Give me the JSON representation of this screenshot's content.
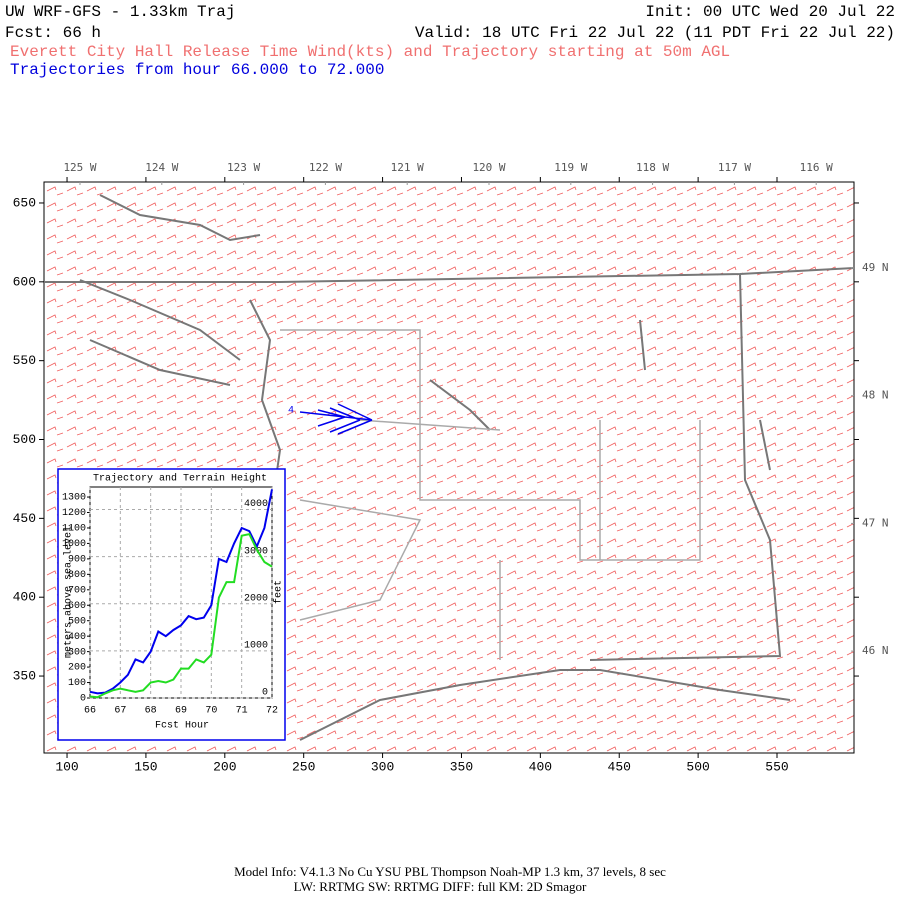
{
  "header": {
    "model": "UW WRF-GFS - 1.33km Traj",
    "init": "Init: 00 UTC Wed 20 Jul 22",
    "fcst": "Fcst:  66 h",
    "valid": "Valid: 18 UTC Fri 22 Jul 22 (11 PDT Fri 22 Jul 22)",
    "subtitle": "Everett City Hall Release Time Wind(kts) and Trajectory starting at 50m AGL",
    "trajectory_range": "Trajectories from hour  66.000 to  72.000"
  },
  "map": {
    "xlim": [
      85.4,
      598.8
    ],
    "ylim": [
      301.2,
      663.3
    ],
    "xticks": [
      100,
      150,
      200,
      250,
      300,
      350,
      400,
      450,
      500,
      550
    ],
    "yticks": [
      350,
      400,
      450,
      500,
      550,
      600,
      650
    ],
    "lon_labels": [
      {
        "value": -125,
        "label": "125 W"
      },
      {
        "value": -124,
        "label": "124 W"
      },
      {
        "value": -123,
        "label": "123 W"
      },
      {
        "value": -122,
        "label": "122 W"
      },
      {
        "value": -121,
        "label": "121 W"
      },
      {
        "value": -120,
        "label": "120 W"
      },
      {
        "value": -119,
        "label": "119 W"
      },
      {
        "value": -118,
        "label": "118 W"
      },
      {
        "value": -117,
        "label": "117 W"
      },
      {
        "value": -116,
        "label": "116 W"
      }
    ],
    "lat_labels": [
      {
        "value": 49,
        "label": "49 N"
      },
      {
        "value": 48,
        "label": "48 N"
      },
      {
        "value": 47,
        "label": "47 N"
      },
      {
        "value": 46,
        "label": "46 N"
      }
    ],
    "trajectory_label": "4"
  },
  "inset": {
    "type": "line",
    "title": "Trajectory and Terrain Height",
    "ylabel": "meters above sea level",
    "y2label": "feet",
    "xlabel": "Fcst Hour",
    "x": [
      66,
      66.25,
      66.5,
      66.75,
      67,
      67.25,
      67.5,
      67.75,
      68,
      68.25,
      68.5,
      68.75,
      69,
      69.25,
      69.5,
      69.75,
      70,
      70.25,
      70.5,
      70.75,
      71,
      71.25,
      71.5,
      71.75,
      72
    ],
    "xlim": [
      66,
      72
    ],
    "xticks": [
      66,
      67,
      68,
      69,
      70,
      71,
      72
    ],
    "ylim": [
      0,
      1365
    ],
    "yticks": [
      0,
      100,
      200,
      300,
      400,
      500,
      600,
      700,
      800,
      900,
      1000,
      1100,
      1200,
      1300
    ],
    "y2lim": [
      0,
      4478
    ],
    "y2ticks": [
      0,
      1000,
      2000,
      3000,
      4000
    ],
    "grid": true,
    "series": [
      {
        "color": "#0000ee",
        "values": [
          40,
          30,
          35,
          60,
          100,
          150,
          250,
          230,
          300,
          430,
          400,
          440,
          470,
          530,
          510,
          520,
          600,
          900,
          880,
          1000,
          1100,
          1080,
          980,
          1100,
          1350
        ]
      },
      {
        "color": "#22dd22",
        "values": [
          10,
          5,
          30,
          50,
          60,
          50,
          40,
          50,
          100,
          110,
          100,
          120,
          190,
          190,
          250,
          230,
          280,
          650,
          750,
          750,
          1050,
          1060,
          960,
          880,
          850
        ]
      }
    ]
  },
  "footer": {
    "line1": "Model Info: V4.1.3    No Cu    YSU PBL   Thompson     Noah-MP    1.3 km,  37 levels,     8 sec",
    "line2": "LW: RRTMG SW: RRTMG    DIFF: full    KM: 2D Smagor"
  }
}
